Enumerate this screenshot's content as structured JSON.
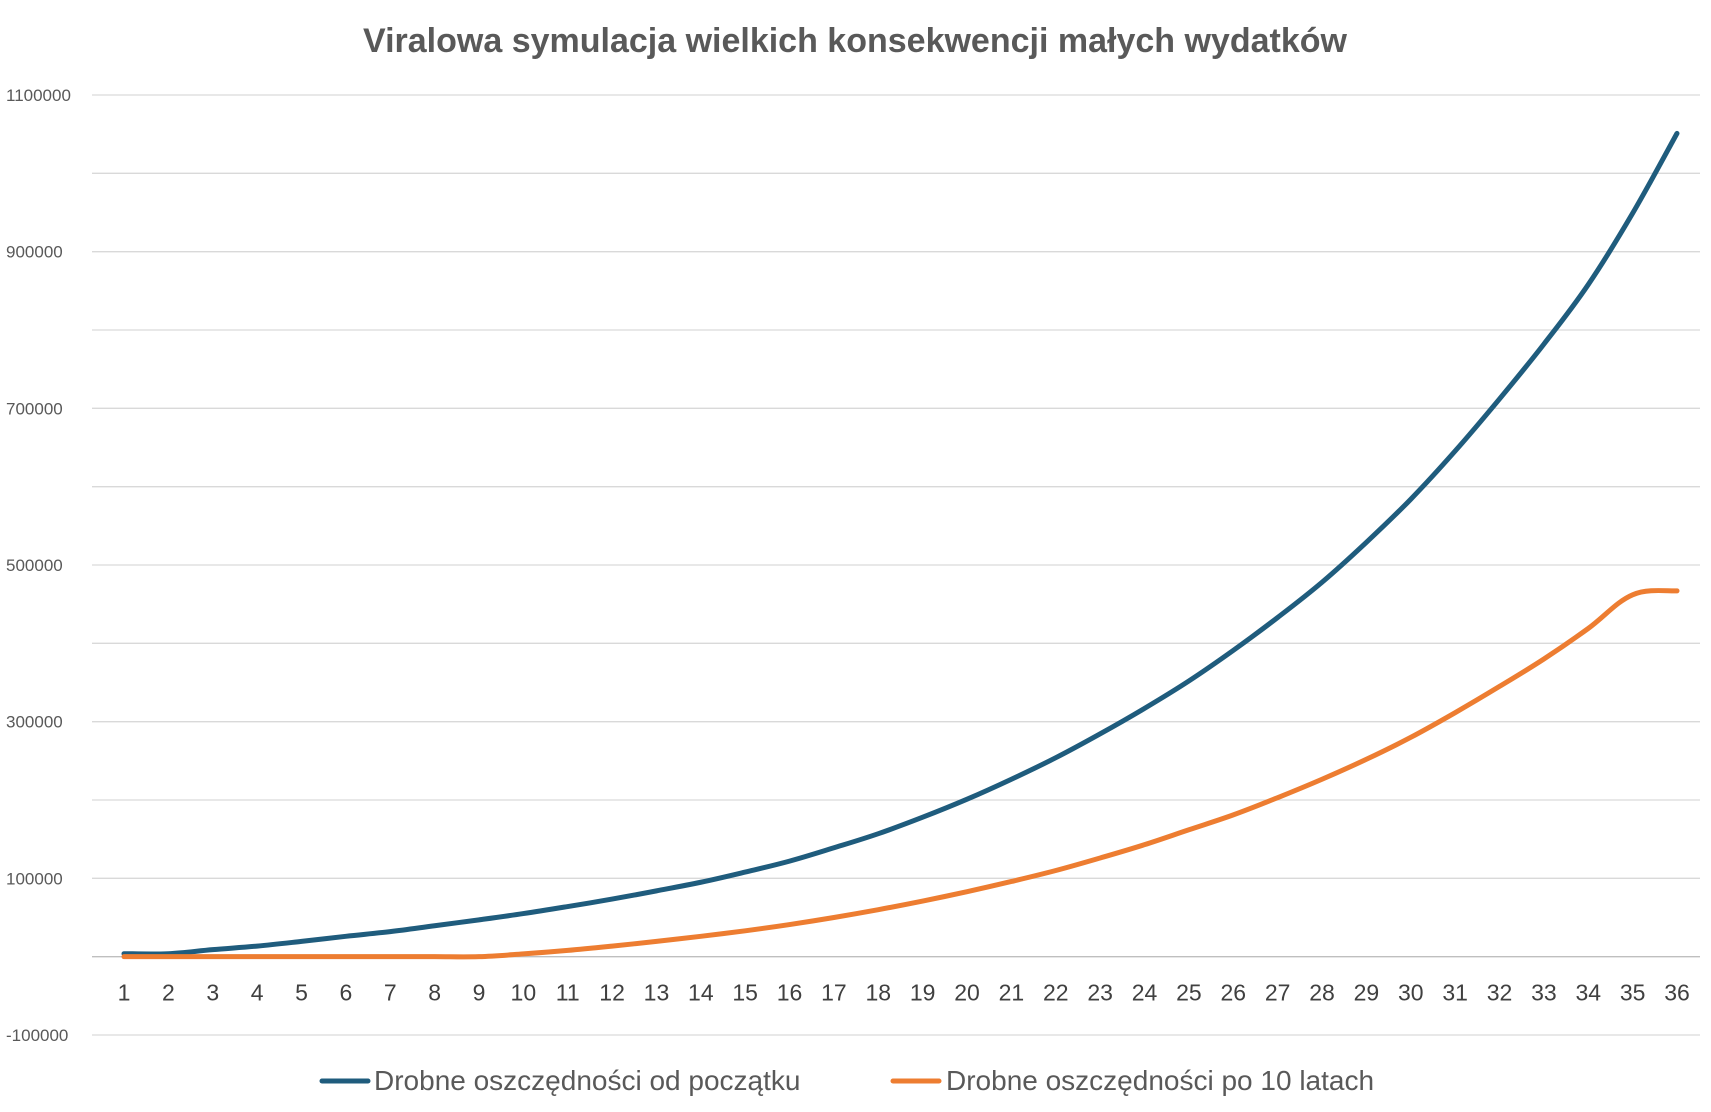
{
  "chart_data": {
    "type": "line",
    "title": "Viralowa symulacja wielkich konsekwencji małych wydatków",
    "xlabel": "",
    "ylabel": "",
    "categories": [
      "1",
      "2",
      "3",
      "4",
      "5",
      "6",
      "7",
      "8",
      "9",
      "10",
      "11",
      "12",
      "13",
      "14",
      "15",
      "16",
      "17",
      "18",
      "19",
      "20",
      "21",
      "22",
      "23",
      "24",
      "25",
      "26",
      "27",
      "28",
      "29",
      "30",
      "31",
      "32",
      "33",
      "34",
      "35",
      "36"
    ],
    "y_ticks": [
      "1100000",
      "900000",
      "700000",
      "500000",
      "300000",
      "100000",
      "-100000"
    ],
    "ylim": [
      -100000,
      1100000
    ],
    "grid": true,
    "legend_position": "bottom",
    "series": [
      {
        "name": "Drobne oszczędności od początku",
        "color": "#1f5c7d",
        "values": [
          3800,
          3800,
          9000,
          13500,
          19500,
          26000,
          32000,
          39500,
          47000,
          55000,
          64000,
          73500,
          84000,
          95000,
          108000,
          122000,
          139000,
          157000,
          178000,
          201000,
          226500,
          254000,
          284500,
          317000,
          352000,
          391000,
          433000,
          478000,
          529000,
          584000,
          645500,
          712000,
          782000,
          858000,
          949000,
          1051000
        ]
      },
      {
        "name": "Drobne oszczędności po 10 latach",
        "color": "#ed7d31",
        "values": [
          0,
          0,
          0,
          0,
          0,
          0,
          0,
          0,
          0,
          3500,
          8000,
          13500,
          19500,
          26000,
          33000,
          41000,
          50000,
          60000,
          71000,
          83000,
          96000,
          110000,
          126000,
          143000,
          162000,
          181000,
          203000,
          226500,
          252000,
          280000,
          311500,
          345000,
          380000,
          419000,
          462000,
          467000
        ]
      }
    ]
  }
}
